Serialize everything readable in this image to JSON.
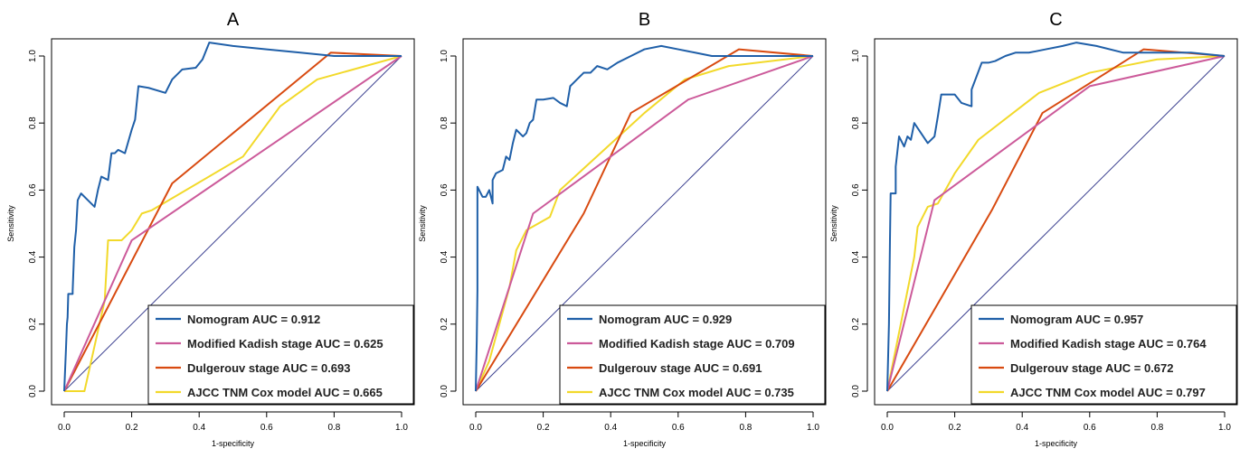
{
  "chart_data": [
    {
      "type": "line",
      "title": "A",
      "xlabel": "1-specificity",
      "ylabel": "Sensitivity",
      "xlim": [
        0,
        1
      ],
      "ylim": [
        0,
        1
      ],
      "x_ticks": [
        "0.0",
        "0.2",
        "0.4",
        "0.6",
        "0.8",
        "1.0"
      ],
      "y_ticks": [
        "0.0",
        "0.2",
        "0.4",
        "0.6",
        "0.8",
        "1.0"
      ],
      "reference_line": true,
      "legend_position": "bottom-right",
      "series": [
        {
          "name": "Nomogram AUC = 0.912",
          "color": "#1f5fa8",
          "points": [
            [
              0,
              0
            ],
            [
              0.005,
              0.12
            ],
            [
              0.008,
              0.2
            ],
            [
              0.01,
              0.22
            ],
            [
              0.012,
              0.29
            ],
            [
              0.025,
              0.29
            ],
            [
              0.025,
              0.3
            ],
            [
              0.03,
              0.43
            ],
            [
              0.035,
              0.48
            ],
            [
              0.04,
              0.57
            ],
            [
              0.05,
              0.59
            ],
            [
              0.07,
              0.57
            ],
            [
              0.09,
              0.55
            ],
            [
              0.1,
              0.6
            ],
            [
              0.11,
              0.64
            ],
            [
              0.13,
              0.63
            ],
            [
              0.14,
              0.71
            ],
            [
              0.15,
              0.71
            ],
            [
              0.16,
              0.72
            ],
            [
              0.18,
              0.71
            ],
            [
              0.2,
              0.78
            ],
            [
              0.21,
              0.81
            ],
            [
              0.22,
              0.91
            ],
            [
              0.25,
              0.905
            ],
            [
              0.3,
              0.89
            ],
            [
              0.32,
              0.93
            ],
            [
              0.35,
              0.96
            ],
            [
              0.39,
              0.965
            ],
            [
              0.41,
              0.99
            ],
            [
              0.43,
              1.04
            ],
            [
              0.5,
              1.03
            ],
            [
              0.6,
              1.02
            ],
            [
              0.7,
              1.01
            ],
            [
              0.8,
              1.0
            ],
            [
              0.9,
              1.0
            ],
            [
              1.0,
              1.0
            ]
          ]
        },
        {
          "name": "Modified Kadish stage AUC = 0.625",
          "color": "#cc5a9a",
          "points": [
            [
              0,
              0
            ],
            [
              0.2,
              0.45
            ],
            [
              1.0,
              1.0
            ]
          ]
        },
        {
          "name": "Dulgerouv stage AUC = 0.693",
          "color": "#d84a10",
          "points": [
            [
              0,
              0
            ],
            [
              0.32,
              0.62
            ],
            [
              0.79,
              1.01
            ],
            [
              1.0,
              1.0
            ]
          ]
        },
        {
          "name": "AJCC TNM Cox model AUC = 0.665",
          "color": "#f2d92a",
          "points": [
            [
              0,
              0
            ],
            [
              0.06,
              0
            ],
            [
              0.12,
              0.27
            ],
            [
              0.13,
              0.45
            ],
            [
              0.16,
              0.45
            ],
            [
              0.17,
              0.45
            ],
            [
              0.2,
              0.48
            ],
            [
              0.23,
              0.53
            ],
            [
              0.26,
              0.54
            ],
            [
              0.53,
              0.7
            ],
            [
              0.64,
              0.85
            ],
            [
              0.75,
              0.93
            ],
            [
              1.0,
              1.0
            ]
          ]
        }
      ]
    },
    {
      "type": "line",
      "title": "B",
      "xlabel": "1-specificity",
      "ylabel": "Sensitivity",
      "xlim": [
        0,
        1
      ],
      "ylim": [
        0,
        1
      ],
      "x_ticks": [
        "0.0",
        "0.2",
        "0.4",
        "0.6",
        "0.8",
        "1.0"
      ],
      "y_ticks": [
        "0.0",
        "0.2",
        "0.4",
        "0.6",
        "0.8",
        "1.0"
      ],
      "reference_line": true,
      "legend_position": "bottom-right",
      "series": [
        {
          "name": "Nomogram AUC = 0.929",
          "color": "#1f5fa8",
          "points": [
            [
              0,
              0
            ],
            [
              0.003,
              0.15
            ],
            [
              0.005,
              0.3
            ],
            [
              0.005,
              0.61
            ],
            [
              0.02,
              0.58
            ],
            [
              0.03,
              0.58
            ],
            [
              0.04,
              0.6
            ],
            [
              0.05,
              0.56
            ],
            [
              0.05,
              0.63
            ],
            [
              0.06,
              0.65
            ],
            [
              0.08,
              0.66
            ],
            [
              0.09,
              0.7
            ],
            [
              0.1,
              0.69
            ],
            [
              0.11,
              0.74
            ],
            [
              0.12,
              0.78
            ],
            [
              0.14,
              0.76
            ],
            [
              0.15,
              0.77
            ],
            [
              0.16,
              0.8
            ],
            [
              0.17,
              0.81
            ],
            [
              0.18,
              0.87
            ],
            [
              0.2,
              0.87
            ],
            [
              0.23,
              0.875
            ],
            [
              0.25,
              0.86
            ],
            [
              0.27,
              0.85
            ],
            [
              0.28,
              0.91
            ],
            [
              0.3,
              0.93
            ],
            [
              0.32,
              0.95
            ],
            [
              0.34,
              0.95
            ],
            [
              0.36,
              0.97
            ],
            [
              0.39,
              0.96
            ],
            [
              0.42,
              0.98
            ],
            [
              0.46,
              1.0
            ],
            [
              0.5,
              1.02
            ],
            [
              0.55,
              1.03
            ],
            [
              0.6,
              1.02
            ],
            [
              0.65,
              1.01
            ],
            [
              0.7,
              1.0
            ],
            [
              0.8,
              1.0
            ],
            [
              0.9,
              1.0
            ],
            [
              1.0,
              1.0
            ]
          ]
        },
        {
          "name": "Modified Kadish stage AUC = 0.709",
          "color": "#cc5a9a",
          "points": [
            [
              0,
              0
            ],
            [
              0.17,
              0.53
            ],
            [
              0.63,
              0.87
            ],
            [
              1.0,
              1.0
            ]
          ]
        },
        {
          "name": "Dulgerouv stage AUC = 0.691",
          "color": "#d84a10",
          "points": [
            [
              0,
              0
            ],
            [
              0.32,
              0.53
            ],
            [
              0.46,
              0.83
            ],
            [
              0.78,
              1.02
            ],
            [
              1.0,
              1.0
            ]
          ]
        },
        {
          "name": "AJCC TNM Cox model AUC = 0.735",
          "color": "#f2d92a",
          "points": [
            [
              0,
              0
            ],
            [
              0.04,
              0.09
            ],
            [
              0.1,
              0.31
            ],
            [
              0.12,
              0.42
            ],
            [
              0.15,
              0.48
            ],
            [
              0.22,
              0.52
            ],
            [
              0.25,
              0.6
            ],
            [
              0.5,
              0.83
            ],
            [
              0.62,
              0.93
            ],
            [
              0.75,
              0.97
            ],
            [
              1.0,
              1.0
            ]
          ]
        }
      ]
    },
    {
      "type": "line",
      "title": "C",
      "xlabel": "1-specificity",
      "ylabel": "Sensitivity",
      "xlim": [
        0,
        1
      ],
      "ylim": [
        0,
        1
      ],
      "x_ticks": [
        "0.0",
        "0.2",
        "0.4",
        "0.6",
        "0.8",
        "1.0"
      ],
      "y_ticks": [
        "0.0",
        "0.2",
        "0.4",
        "0.6",
        "0.8",
        "1.0"
      ],
      "reference_line": true,
      "legend_position": "bottom-right",
      "series": [
        {
          "name": "Nomogram AUC = 0.957",
          "color": "#1f5fa8",
          "points": [
            [
              0,
              0
            ],
            [
              0.005,
              0.2
            ],
            [
              0.008,
              0.45
            ],
            [
              0.01,
              0.59
            ],
            [
              0.025,
              0.59
            ],
            [
              0.025,
              0.67
            ],
            [
              0.035,
              0.76
            ],
            [
              0.05,
              0.73
            ],
            [
              0.06,
              0.76
            ],
            [
              0.07,
              0.75
            ],
            [
              0.08,
              0.8
            ],
            [
              0.1,
              0.77
            ],
            [
              0.12,
              0.74
            ],
            [
              0.14,
              0.76
            ],
            [
              0.15,
              0.82
            ],
            [
              0.16,
              0.885
            ],
            [
              0.2,
              0.885
            ],
            [
              0.22,
              0.86
            ],
            [
              0.25,
              0.85
            ],
            [
              0.25,
              0.9
            ],
            [
              0.28,
              0.98
            ],
            [
              0.3,
              0.98
            ],
            [
              0.32,
              0.985
            ],
            [
              0.35,
              1.0
            ],
            [
              0.38,
              1.01
            ],
            [
              0.42,
              1.01
            ],
            [
              0.47,
              1.02
            ],
            [
              0.52,
              1.03
            ],
            [
              0.56,
              1.04
            ],
            [
              0.62,
              1.03
            ],
            [
              0.7,
              1.01
            ],
            [
              0.8,
              1.01
            ],
            [
              0.9,
              1.01
            ],
            [
              1.0,
              1.0
            ]
          ]
        },
        {
          "name": "Modified Kadish stage AUC = 0.764",
          "color": "#cc5a9a",
          "points": [
            [
              0,
              0
            ],
            [
              0.14,
              0.57
            ],
            [
              0.6,
              0.91
            ],
            [
              1.0,
              1.0
            ]
          ]
        },
        {
          "name": "Dulgerouv stage AUC = 0.672",
          "color": "#d84a10",
          "points": [
            [
              0,
              0
            ],
            [
              0.31,
              0.54
            ],
            [
              0.46,
              0.83
            ],
            [
              0.76,
              1.02
            ],
            [
              1.0,
              1.0
            ]
          ]
        },
        {
          "name": "AJCC TNM Cox model AUC = 0.797",
          "color": "#f2d92a",
          "points": [
            [
              0,
              0
            ],
            [
              0.04,
              0.2
            ],
            [
              0.08,
              0.4
            ],
            [
              0.09,
              0.49
            ],
            [
              0.12,
              0.55
            ],
            [
              0.15,
              0.56
            ],
            [
              0.2,
              0.65
            ],
            [
              0.27,
              0.75
            ],
            [
              0.45,
              0.89
            ],
            [
              0.6,
              0.95
            ],
            [
              0.8,
              0.99
            ],
            [
              1.0,
              1.0
            ]
          ]
        }
      ]
    }
  ]
}
